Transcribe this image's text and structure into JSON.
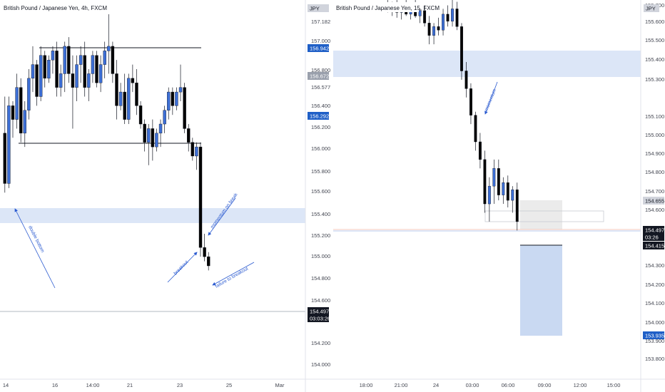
{
  "colors": {
    "bull": "#3d6fd6",
    "bear": "#000000",
    "zone": "#dce6f7",
    "annotation": "#2a5ad0",
    "tag_blue": "#1f5fc7",
    "tag_gray": "#9aa0ac",
    "tag_dark": "#131722",
    "short_risk": "#ebebeb",
    "short_reward": "#c9d9f2"
  },
  "left_chart": {
    "title": "British Pound / Japanese Yen, 4h, FXCM",
    "y_ticks": [
      "157.182",
      "157.000",
      "156.800",
      "156.577",
      "156.400",
      "156.200",
      "156.000",
      "155.800",
      "155.600",
      "155.400",
      "155.200",
      "155.000",
      "154.800",
      "154.600",
      "154.200",
      "154.000"
    ],
    "x_ticks": [
      "14",
      "16",
      "14:00",
      "21",
      "23",
      "25",
      "Mar"
    ],
    "price_tags": {
      "currency": "JPY",
      "high": "156.942",
      "mid": "156.672",
      "low": "156.292",
      "last": "154.497",
      "timer": "03:03:26",
      "below_last": "154.415"
    },
    "annotations": {
      "double_bottom": "double bottom",
      "momentum_on_break": "momentum on break",
      "breakout": "breakout",
      "failure_to_breakout": "failure to breakout"
    }
  },
  "right_chart": {
    "title": "British Pound / Japanese Yen, 15, FXCM",
    "y_ticks": [
      "155.700",
      "155.600",
      "155.500",
      "155.400",
      "155.300",
      "155.100",
      "155.000",
      "154.900",
      "154.800",
      "154.700",
      "154.600",
      "154.300",
      "154.200",
      "154.100",
      "154.000",
      "153.900",
      "153.800"
    ],
    "x_ticks": [
      "18:00",
      "21:00",
      "24",
      "03:00",
      "06:00",
      "09:00",
      "12:00",
      "15:00"
    ],
    "price_tags": {
      "currency": "JPY",
      "upper": "154.655",
      "last": "154.497",
      "timer": "03:26",
      "entry": "154.415",
      "target": "153.935"
    },
    "annotations": {
      "momentum": "momentum"
    }
  },
  "chart_data": [
    {
      "type": "candlestick",
      "title": "British Pound / Japanese Yen, 4h, FXCM",
      "x_ticks": [
        "14",
        "16",
        "14:00",
        "21",
        "23",
        "25",
        "Mar"
      ],
      "ylim": [
        153.9,
        157.25
      ],
      "horizontal_levels": [
        156.91,
        156.05,
        154.53
      ],
      "zone": [
        155.3,
        155.45
      ],
      "last_price": 154.497,
      "candles": [
        [
          155.95,
          156.35,
          155.3,
          155.4
        ],
        [
          155.4,
          156.35,
          155.35,
          156.25
        ],
        [
          156.25,
          156.3,
          155.9,
          156.1
        ],
        [
          156.1,
          156.6,
          156.0,
          156.45
        ],
        [
          156.45,
          156.55,
          155.85,
          155.95
        ],
        [
          155.95,
          156.3,
          155.8,
          156.2
        ],
        [
          156.2,
          156.65,
          156.1,
          156.55
        ],
        [
          156.55,
          156.9,
          156.4,
          156.7
        ],
        [
          156.7,
          156.75,
          156.25,
          156.35
        ],
        [
          156.35,
          156.9,
          156.3,
          156.8
        ],
        [
          156.8,
          156.85,
          156.45,
          156.55
        ],
        [
          156.55,
          156.8,
          156.5,
          156.75
        ],
        [
          156.75,
          156.9,
          156.6,
          156.85
        ],
        [
          156.85,
          156.95,
          156.35,
          156.45
        ],
        [
          156.45,
          156.7,
          156.35,
          156.6
        ],
        [
          156.6,
          156.95,
          156.4,
          156.9
        ],
        [
          156.9,
          157.0,
          156.5,
          156.6
        ],
        [
          156.6,
          156.8,
          156.0,
          156.45
        ],
        [
          156.45,
          156.8,
          156.3,
          156.7
        ],
        [
          156.7,
          156.9,
          156.5,
          156.8
        ],
        [
          156.8,
          156.95,
          156.35,
          156.45
        ],
        [
          156.45,
          156.65,
          156.3,
          156.6
        ],
        [
          156.6,
          156.85,
          156.5,
          156.8
        ],
        [
          156.8,
          156.85,
          156.45,
          156.5
        ],
        [
          156.5,
          156.8,
          156.4,
          156.7
        ],
        [
          156.7,
          156.95,
          156.55,
          156.85
        ],
        [
          156.85,
          157.25,
          156.6,
          156.9
        ],
        [
          156.9,
          156.95,
          156.5,
          156.6
        ],
        [
          156.6,
          156.75,
          156.1,
          156.25
        ],
        [
          156.25,
          156.5,
          156.2,
          156.4
        ],
        [
          156.4,
          156.6,
          156.05,
          156.1
        ],
        [
          156.1,
          156.6,
          156.05,
          156.55
        ],
        [
          156.55,
          156.7,
          156.4,
          156.5
        ],
        [
          156.5,
          156.65,
          156.15,
          156.25
        ],
        [
          156.25,
          156.3,
          156.0,
          156.05
        ],
        [
          156.05,
          156.1,
          155.75,
          155.85
        ],
        [
          155.85,
          156.05,
          155.6,
          156.0
        ],
        [
          156.0,
          156.1,
          155.65,
          155.8
        ],
        [
          155.8,
          156.0,
          155.75,
          155.95
        ],
        [
          155.95,
          156.1,
          155.8,
          156.05
        ],
        [
          156.05,
          156.25,
          155.95,
          156.2
        ],
        [
          156.2,
          156.45,
          156.1,
          156.4
        ],
        [
          156.4,
          156.45,
          156.15,
          156.25
        ],
        [
          156.25,
          156.45,
          156.2,
          156.4
        ],
        [
          156.4,
          156.7,
          156.3,
          156.45
        ],
        [
          156.45,
          156.5,
          155.95,
          156.0
        ],
        [
          156.0,
          156.05,
          155.75,
          155.85
        ],
        [
          155.85,
          155.9,
          155.65,
          155.7
        ],
        [
          155.7,
          155.85,
          155.55,
          155.8
        ],
        [
          155.8,
          155.85,
          154.6,
          154.7
        ],
        [
          154.7,
          154.85,
          154.55,
          154.6
        ],
        [
          154.6,
          154.65,
          154.45,
          154.5
        ]
      ]
    },
    {
      "type": "candlestick",
      "title": "British Pound / Japanese Yen, 15, FXCM",
      "x_ticks": [
        "18:00",
        "21:00",
        "24",
        "03:00",
        "06:00",
        "09:00",
        "12:00",
        "15:00"
      ],
      "ylim": [
        153.78,
        155.75
      ],
      "zone": [
        155.33,
        155.46
      ],
      "last_price": 154.497,
      "short_position": {
        "entry": 154.415,
        "stop": 154.655,
        "target": 153.935
      },
      "candles": [
        [
          155.72,
          155.75,
          155.68,
          155.7
        ],
        [
          155.7,
          155.74,
          155.66,
          155.72
        ],
        [
          155.72,
          155.75,
          155.65,
          155.68
        ],
        [
          155.68,
          155.73,
          155.64,
          155.71
        ],
        [
          155.71,
          155.75,
          155.66,
          155.67
        ],
        [
          155.67,
          155.72,
          155.64,
          155.7
        ],
        [
          155.7,
          155.75,
          155.65,
          155.66
        ],
        [
          155.66,
          155.7,
          155.62,
          155.69
        ],
        [
          155.69,
          155.72,
          155.6,
          155.62
        ],
        [
          155.62,
          155.66,
          155.5,
          155.55
        ],
        [
          155.55,
          155.62,
          155.5,
          155.6
        ],
        [
          155.6,
          155.65,
          155.55,
          155.58
        ],
        [
          155.58,
          155.7,
          155.55,
          155.67
        ],
        [
          155.67,
          155.72,
          155.6,
          155.63
        ],
        [
          155.63,
          155.75,
          155.6,
          155.7
        ],
        [
          155.7,
          155.74,
          155.58,
          155.6
        ],
        [
          155.6,
          155.62,
          155.3,
          155.35
        ],
        [
          155.35,
          155.4,
          155.2,
          155.25
        ],
        [
          155.25,
          155.28,
          155.05,
          155.1
        ],
        [
          155.1,
          155.12,
          154.9,
          154.95
        ],
        [
          154.95,
          155.0,
          154.8,
          154.85
        ],
        [
          154.85,
          154.9,
          154.55,
          154.6
        ],
        [
          154.6,
          154.75,
          154.5,
          154.7
        ],
        [
          154.7,
          154.85,
          154.6,
          154.8
        ],
        [
          154.8,
          154.85,
          154.62,
          154.65
        ],
        [
          154.65,
          154.75,
          154.6,
          154.72
        ],
        [
          154.72,
          154.76,
          154.58,
          154.62
        ],
        [
          154.62,
          154.7,
          154.55,
          154.68
        ],
        [
          154.68,
          154.72,
          154.45,
          154.5
        ]
      ]
    }
  ]
}
